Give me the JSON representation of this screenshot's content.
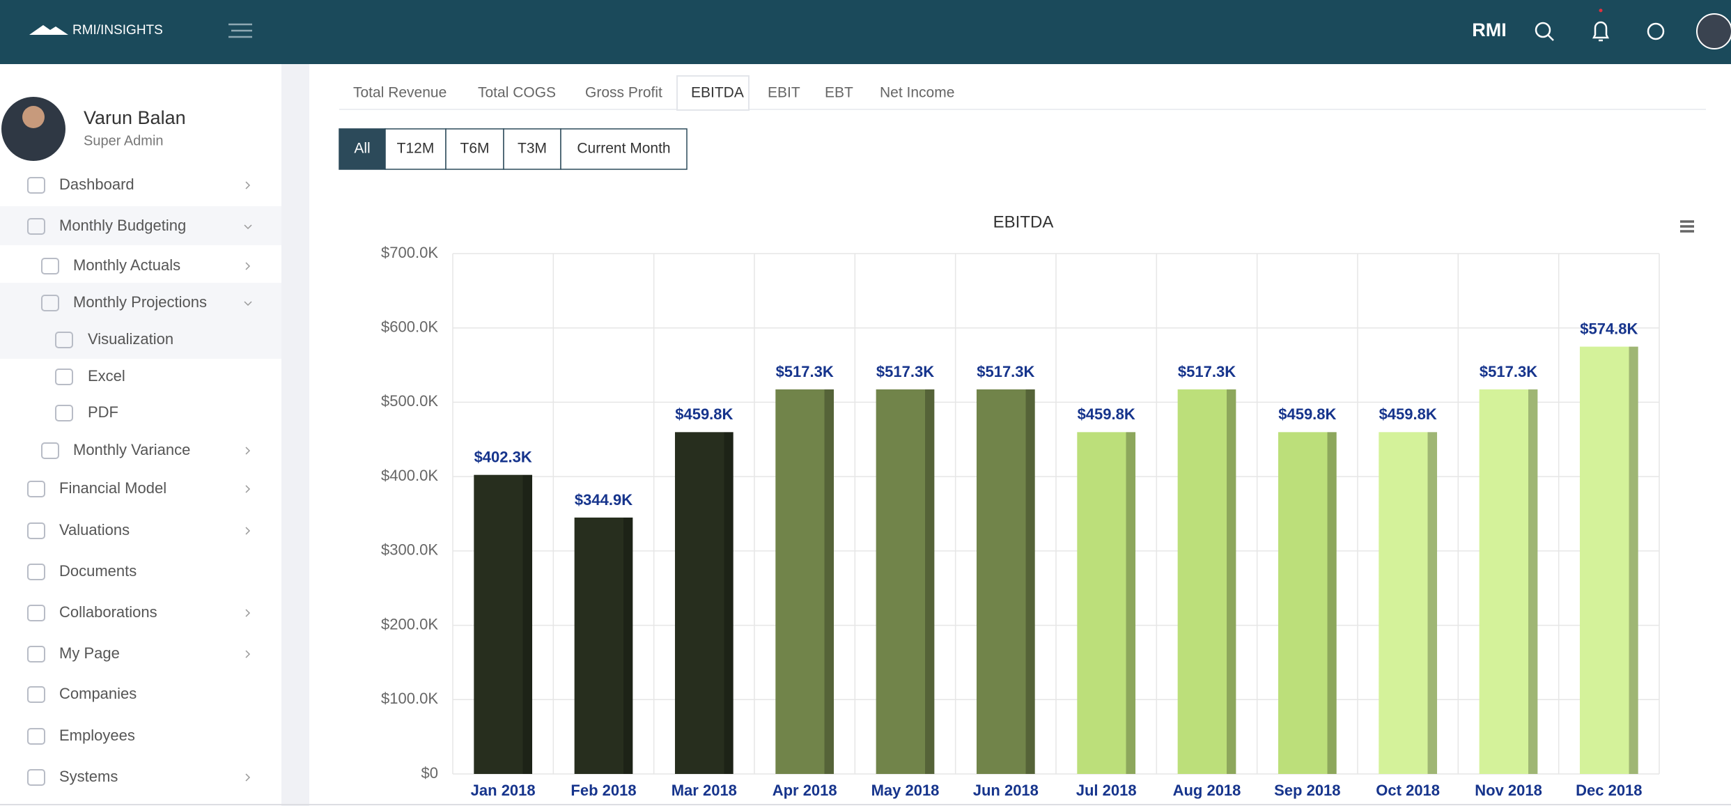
{
  "header": {
    "logo": "RMI/INSIGHTS",
    "org": "RMI"
  },
  "user": {
    "name": "Varun Balan",
    "role": "Super Admin"
  },
  "sidebar": {
    "items": [
      "Dashboard",
      "Monthly Budgeting",
      "Monthly Actuals",
      "Monthly Projections",
      "Visualization",
      "Excel",
      "PDF",
      "Monthly Variance",
      "Financial Model",
      "Valuations",
      "Documents",
      "Collaborations",
      "My Page",
      "Companies",
      "Employees",
      "Systems"
    ]
  },
  "tabs": [
    "Total Revenue",
    "Total COGS",
    "Gross Profit",
    "EBITDA",
    "EBIT",
    "EBT",
    "Net Income"
  ],
  "filters": [
    "All",
    "T12M",
    "T6M",
    "T3M",
    "Current Month"
  ],
  "chart_data": {
    "type": "bar",
    "title": "EBITDA",
    "categories": [
      "Jan 2018",
      "Feb 2018",
      "Mar 2018",
      "Apr 2018",
      "May 2018",
      "Jun 2018",
      "Jul 2018",
      "Aug 2018",
      "Sep 2018",
      "Oct 2018",
      "Nov 2018",
      "Dec 2018"
    ],
    "values": [
      402300,
      344900,
      459800,
      517300,
      517300,
      517300,
      459800,
      517300,
      459800,
      459800,
      517300,
      574800
    ],
    "value_labels": [
      "$402.3K",
      "$344.9K",
      "$459.8K",
      "$517.3K",
      "$517.3K",
      "$517.3K",
      "$459.8K",
      "$517.3K",
      "$459.8K",
      "$459.8K",
      "$517.3K",
      "$574.8K"
    ],
    "colors": [
      "#272e1e",
      "#272e1e",
      "#272e1e",
      "#71844a",
      "#71844a",
      "#71844a",
      "#bcdf7a",
      "#bcdf7a",
      "#bcdf7a",
      "#d4f29a",
      "#d4f29a",
      "#d4f29a"
    ],
    "ylim": [
      0,
      700000
    ],
    "yticks": [
      {
        "value": 0,
        "label": "$0"
      },
      {
        "value": 100000,
        "label": "$100.0K"
      },
      {
        "value": 200000,
        "label": "$200.0K"
      },
      {
        "value": 300000,
        "label": "$300.0K"
      },
      {
        "value": 400000,
        "label": "$400.0K"
      },
      {
        "value": 500000,
        "label": "$500.0K"
      },
      {
        "value": 600000,
        "label": "$600.0K"
      },
      {
        "value": 700000,
        "label": "$700.0K"
      }
    ],
    "grid": true
  }
}
